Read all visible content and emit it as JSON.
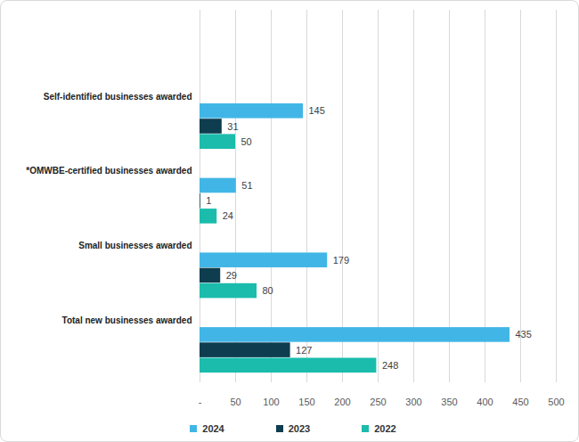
{
  "chart_data": {
    "type": "bar",
    "orientation": "horizontal",
    "categories": [
      "Self-identified businesses awarded",
      "*OMWBE-certified businesses awarded",
      "Small businesses awarded",
      "Total new businesses awarded"
    ],
    "series": [
      {
        "name": "2024",
        "color": "#41b6e6",
        "values": [
          145,
          51,
          179,
          435
        ]
      },
      {
        "name": "2023",
        "color": "#0d3d4f",
        "values": [
          31,
          1,
          29,
          127
        ]
      },
      {
        "name": "2022",
        "color": "#1bbcac",
        "values": [
          50,
          24,
          80,
          248
        ]
      }
    ],
    "xlim": [
      0,
      500
    ],
    "xticks": [
      {
        "value": 0,
        "label": "-"
      },
      50,
      100,
      150,
      200,
      250,
      300,
      350,
      400,
      450,
      500
    ],
    "grid": true,
    "data_labels": true,
    "legend": "bottom"
  }
}
